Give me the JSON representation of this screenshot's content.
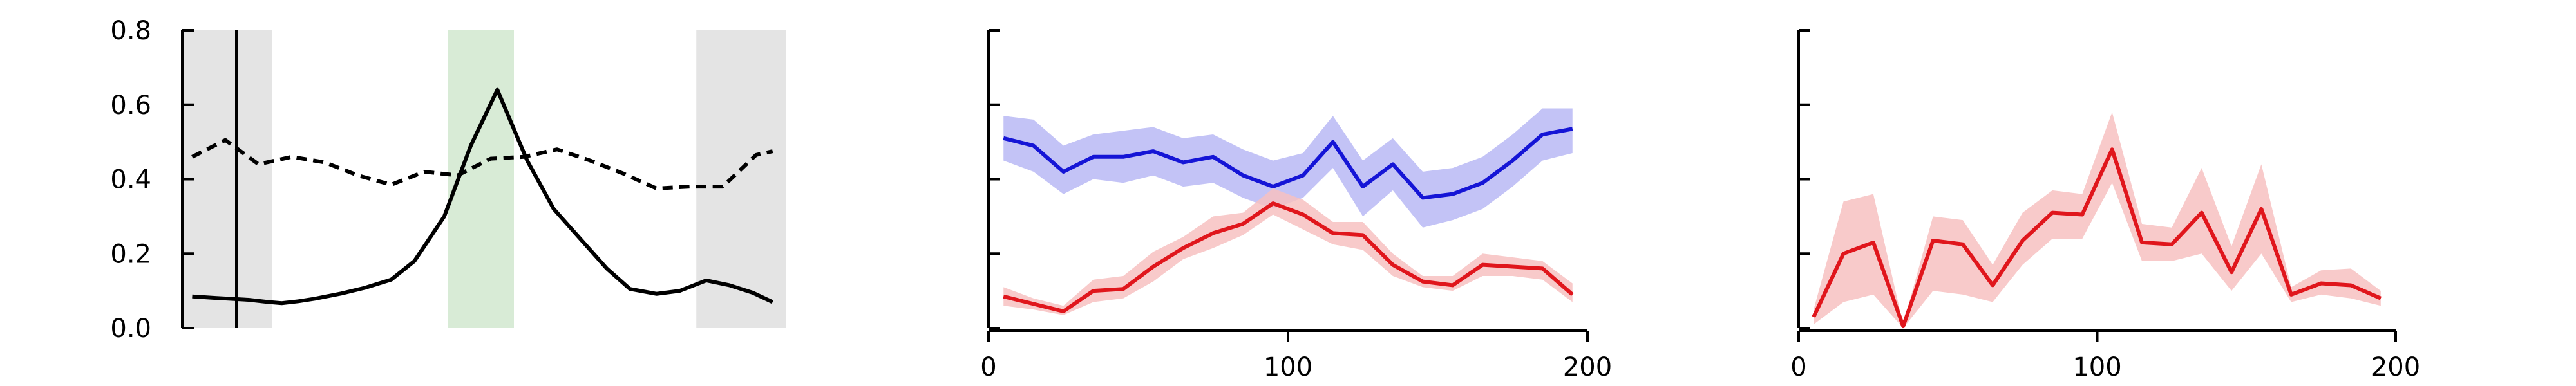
{
  "chart_data": [
    {
      "type": "line",
      "xlim": [
        0,
        18
      ],
      "ylim": [
        0,
        0.8
      ],
      "y_ticks": [
        "0.0",
        "0.2",
        "0.4",
        "0.6",
        "0.8"
      ],
      "x_ticks": [],
      "shaded_regions": [
        {
          "x0": 0,
          "x1": 2.7,
          "color": "#e4e4e4"
        },
        {
          "x0": 8,
          "x1": 10,
          "color": "#d8ebd6"
        },
        {
          "x0": 15.5,
          "x1": 18.2,
          "color": "#e4e4e4"
        }
      ],
      "series": [
        {
          "color": "#000000",
          "style": "solid",
          "x": [
            0.3,
            1,
            2,
            2.3,
            2.6,
            3,
            3.5,
            4,
            4.8,
            5.5,
            6.3,
            7,
            7.9,
            8.7,
            9.5,
            10.4,
            11.2,
            12,
            12.8,
            13.5,
            14.3,
            15,
            15.8,
            16.5,
            17.2,
            17.8
          ],
          "y": [
            0.085,
            0.081,
            0.076,
            0.073,
            0.07,
            0.067,
            0.072,
            0.079,
            0.093,
            0.108,
            0.13,
            0.18,
            0.3,
            0.49,
            0.64,
            0.45,
            0.32,
            0.24,
            0.16,
            0.105,
            0.092,
            0.1,
            0.128,
            0.115,
            0.095,
            0.07
          ]
        },
        {
          "color": "#000000",
          "style": "dashed",
          "x": [
            0.3,
            1.3,
            2.3,
            3.3,
            4.3,
            5.3,
            6.3,
            7.3,
            8.3,
            9.3,
            10.3,
            11.3,
            12.3,
            13.3,
            14.3,
            15.3,
            16.3,
            17.3,
            17.8
          ],
          "y": [
            0.46,
            0.505,
            0.44,
            0.46,
            0.445,
            0.41,
            0.385,
            0.42,
            0.41,
            0.455,
            0.46,
            0.48,
            0.45,
            0.415,
            0.375,
            0.38,
            0.38,
            0.465,
            0.475
          ]
        }
      ]
    },
    {
      "type": "line",
      "xlim": [
        0,
        200
      ],
      "ylim": [
        0,
        0.8
      ],
      "x_ticks": [
        "0",
        "100",
        "200"
      ],
      "y_ticks": [],
      "series": [
        {
          "color": "#1515d6",
          "fill": "#b9b9f5",
          "x": [
            5,
            15,
            25,
            35,
            45,
            55,
            65,
            75,
            85,
            95,
            105,
            115,
            125,
            135,
            145,
            155,
            165,
            175,
            185,
            195
          ],
          "y": [
            0.51,
            0.49,
            0.42,
            0.46,
            0.46,
            0.475,
            0.445,
            0.46,
            0.41,
            0.38,
            0.41,
            0.5,
            0.38,
            0.44,
            0.35,
            0.36,
            0.39,
            0.45,
            0.52,
            0.535
          ],
          "upper": [
            0.57,
            0.56,
            0.49,
            0.52,
            0.53,
            0.54,
            0.51,
            0.52,
            0.48,
            0.45,
            0.47,
            0.57,
            0.45,
            0.51,
            0.42,
            0.43,
            0.46,
            0.52,
            0.59,
            0.59
          ],
          "lower": [
            0.45,
            0.42,
            0.36,
            0.4,
            0.39,
            0.41,
            0.38,
            0.39,
            0.35,
            0.32,
            0.35,
            0.43,
            0.3,
            0.37,
            0.27,
            0.29,
            0.32,
            0.38,
            0.45,
            0.47
          ]
        },
        {
          "color": "#e0161c",
          "fill": "#f7c1c1",
          "x": [
            5,
            15,
            25,
            35,
            45,
            55,
            65,
            75,
            85,
            95,
            105,
            115,
            125,
            135,
            145,
            155,
            165,
            175,
            185,
            195
          ],
          "y": [
            0.085,
            0.065,
            0.045,
            0.1,
            0.105,
            0.165,
            0.215,
            0.255,
            0.28,
            0.335,
            0.305,
            0.255,
            0.25,
            0.17,
            0.125,
            0.115,
            0.17,
            0.165,
            0.16,
            0.09
          ],
          "upper": [
            0.11,
            0.08,
            0.06,
            0.13,
            0.14,
            0.205,
            0.245,
            0.3,
            0.31,
            0.375,
            0.345,
            0.285,
            0.285,
            0.2,
            0.14,
            0.14,
            0.2,
            0.19,
            0.18,
            0.12
          ],
          "lower": [
            0.06,
            0.05,
            0.035,
            0.07,
            0.08,
            0.125,
            0.185,
            0.215,
            0.25,
            0.305,
            0.265,
            0.225,
            0.21,
            0.14,
            0.11,
            0.1,
            0.14,
            0.14,
            0.13,
            0.07
          ]
        }
      ]
    },
    {
      "type": "line",
      "xlim": [
        0,
        200
      ],
      "ylim": [
        0,
        0.8
      ],
      "x_ticks": [
        "0",
        "100",
        "200"
      ],
      "y_ticks": [],
      "series": [
        {
          "color": "#e0161c",
          "fill": "#f7c1c1",
          "x": [
            5,
            15,
            25,
            35,
            45,
            55,
            65,
            75,
            85,
            95,
            105,
            115,
            125,
            135,
            145,
            155,
            165,
            175,
            185,
            195
          ],
          "y": [
            0.03,
            0.2,
            0.23,
            0.005,
            0.235,
            0.225,
            0.115,
            0.235,
            0.31,
            0.305,
            0.48,
            0.23,
            0.225,
            0.31,
            0.15,
            0.32,
            0.09,
            0.12,
            0.115,
            0.08
          ],
          "upper": [
            0.05,
            0.34,
            0.36,
            0.01,
            0.3,
            0.29,
            0.17,
            0.31,
            0.37,
            0.36,
            0.58,
            0.28,
            0.27,
            0.43,
            0.22,
            0.44,
            0.11,
            0.155,
            0.16,
            0.1
          ],
          "lower": [
            0.01,
            0.07,
            0.09,
            0.0,
            0.1,
            0.09,
            0.07,
            0.17,
            0.24,
            0.24,
            0.39,
            0.18,
            0.18,
            0.2,
            0.1,
            0.2,
            0.07,
            0.09,
            0.08,
            0.06
          ]
        }
      ]
    }
  ]
}
